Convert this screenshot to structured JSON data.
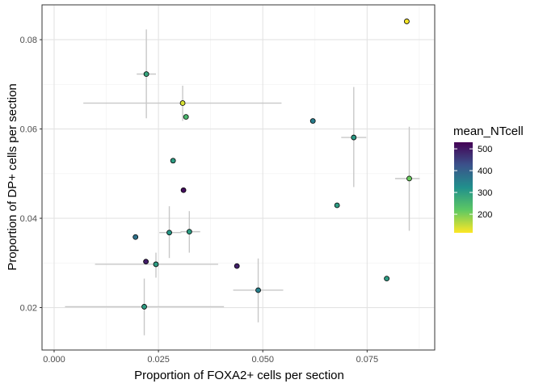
{
  "chart_data": {
    "type": "scatter",
    "xlabel": "Proportion of FOXA2+ cells per section",
    "ylabel": "Proportion of DP+ cells per section",
    "xlim": [
      -0.0029,
      0.0912
    ],
    "ylim": [
      0.0105,
      0.0878
    ],
    "x_ticks": [
      0.0,
      0.025,
      0.05,
      0.075
    ],
    "x_tick_labels": [
      "0.000",
      "0.025",
      "0.050",
      "0.075"
    ],
    "y_ticks": [
      0.02,
      0.04,
      0.06,
      0.08
    ],
    "y_tick_labels": [
      "0.02",
      "0.04",
      "0.06",
      "0.08"
    ],
    "grid": true,
    "legend": {
      "title": "mean_NTcell",
      "position": "right",
      "min": 115,
      "max": 530,
      "ticks": [
        200,
        300,
        400,
        500
      ],
      "tick_labels": [
        "200",
        "300",
        "400",
        "500"
      ],
      "palette": [
        "#440154",
        "#3b528b",
        "#21908c",
        "#5dc863",
        "#fde725"
      ]
    },
    "points": [
      {
        "x": 0.0845,
        "y": 0.0841,
        "color": 120
      },
      {
        "x": 0.0221,
        "y": 0.0723,
        "color": 285,
        "xerr": [
          0.0198,
          0.0244
        ],
        "yerr": [
          0.0624,
          0.0823
        ]
      },
      {
        "x": 0.0308,
        "y": 0.0658,
        "color": 140,
        "xerr": [
          0.007,
          0.0545
        ],
        "yerr": [
          0.0618,
          0.0697
        ]
      },
      {
        "x": 0.0316,
        "y": 0.0627,
        "color": 250
      },
      {
        "x": 0.062,
        "y": 0.0618,
        "color": 355
      },
      {
        "x": 0.0718,
        "y": 0.0581,
        "color": 305,
        "xerr": [
          0.0688,
          0.0748
        ],
        "yerr": [
          0.047,
          0.0694
        ]
      },
      {
        "x": 0.0285,
        "y": 0.0529,
        "color": 300
      },
      {
        "x": 0.0851,
        "y": 0.0489,
        "color": 210,
        "xerr": [
          0.0817,
          0.0876
        ],
        "yerr": [
          0.0372,
          0.0605
        ]
      },
      {
        "x": 0.031,
        "y": 0.0463,
        "color": 515
      },
      {
        "x": 0.0678,
        "y": 0.0429,
        "color": 300
      },
      {
        "x": 0.0276,
        "y": 0.0368,
        "color": 310,
        "xerr": [
          0.0252,
          0.0305
        ],
        "yerr": [
          0.0311,
          0.0427
        ]
      },
      {
        "x": 0.0324,
        "y": 0.037,
        "color": 300,
        "xerr": [
          0.0303,
          0.035
        ],
        "yerr": [
          0.0323,
          0.0416
        ]
      },
      {
        "x": 0.0195,
        "y": 0.0358,
        "color": 375
      },
      {
        "x": 0.022,
        "y": 0.0303,
        "color": 495
      },
      {
        "x": 0.0244,
        "y": 0.0297,
        "color": 300,
        "xerr": [
          0.0098,
          0.0393
        ],
        "yerr": [
          0.0267,
          0.0323
        ]
      },
      {
        "x": 0.0438,
        "y": 0.0293,
        "color": 490
      },
      {
        "x": 0.0797,
        "y": 0.0265,
        "color": 300
      },
      {
        "x": 0.0489,
        "y": 0.0239,
        "color": 350,
        "xerr": [
          0.0429,
          0.0549
        ],
        "yerr": [
          0.0167,
          0.031
        ]
      },
      {
        "x": 0.0216,
        "y": 0.0202,
        "color": 300,
        "xerr": [
          0.0026,
          0.0407
        ],
        "yerr": [
          0.0138,
          0.0265
        ]
      }
    ]
  }
}
